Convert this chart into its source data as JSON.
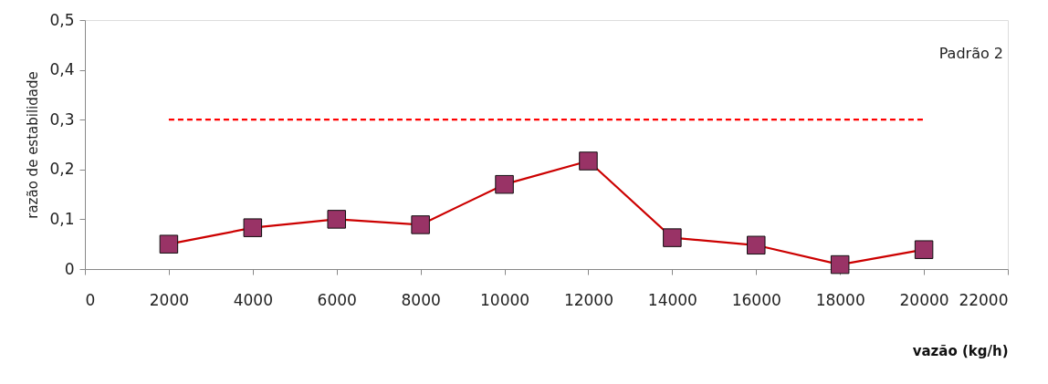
{
  "chart_data": {
    "type": "line",
    "xlabel": "vazão (kg/h)",
    "ylabel": "razão de estabilidade",
    "annotations": [
      "Padrão 2"
    ],
    "x": [
      2000,
      4000,
      6000,
      8000,
      10000,
      12000,
      14000,
      16000,
      18000,
      20000
    ],
    "series": [
      {
        "color": "#cc0000",
        "marker": "square",
        "values": [
          0.05,
          0.083,
          0.1,
          0.089,
          0.17,
          0.217,
          0.063,
          0.048,
          0.009,
          0.039
        ]
      },
      {
        "color": "#ff0000",
        "x": [
          2000,
          20000
        ],
        "values": [
          0.3,
          0.3
        ],
        "line_style": "dashed",
        "marker": "none"
      }
    ],
    "xlim": [
      0,
      22000
    ],
    "xticks": [
      0,
      2000,
      4000,
      6000,
      8000,
      10000,
      12000,
      14000,
      16000,
      18000,
      20000,
      22000
    ],
    "ylim": [
      0,
      0.5
    ],
    "yticks": [
      0,
      {
        "value": 0.1,
        "label": "0,1"
      },
      {
        "value": 0.2,
        "label": "0,2"
      },
      {
        "value": 0.3,
        "label": "0,3"
      },
      {
        "value": 0.4,
        "label": "0,4"
      },
      {
        "value": 0.5,
        "label": "0,5"
      }
    ],
    "grid": false
  }
}
